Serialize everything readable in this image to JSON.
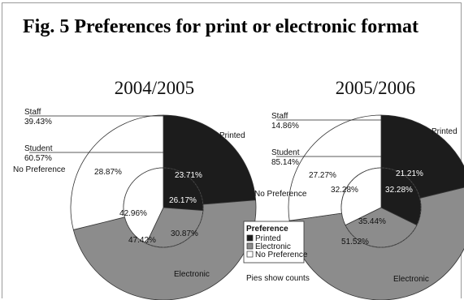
{
  "figure_title": "Fig. 5 Preferences for print or electronic format",
  "colors": {
    "printed": "#1c1c1c",
    "electronic": "#8c8c8c",
    "no_preference": "#ffffff",
    "outline": "#333333"
  },
  "chart_data": [
    {
      "type": "pie",
      "title": "2004/2005",
      "outer_ring": {
        "categories": [
          "Printed",
          "Electronic",
          "No Preference"
        ],
        "values": [
          23.71,
          47.42,
          28.87
        ],
        "labels": [
          "23.71%",
          "47.42%",
          "28.87%"
        ]
      },
      "inner_ring": {
        "categories": [
          "Printed",
          "Electronic",
          "No Preference"
        ],
        "values": [
          26.17,
          30.87,
          42.96
        ],
        "labels": [
          "26.17%",
          "30.87%",
          "42.96%"
        ]
      },
      "callouts": [
        {
          "name": "Staff",
          "value": "39.43%"
        },
        {
          "name": "Student",
          "value": "60.57%"
        }
      ],
      "category_labels": {
        "printed": "Printed",
        "electronic": "Electronic",
        "no_preference": "No Preference"
      }
    },
    {
      "type": "pie",
      "title": "2005/2006",
      "outer_ring": {
        "categories": [
          "Printed",
          "Electronic",
          "No Preference"
        ],
        "values": [
          21.21,
          51.52,
          27.27
        ],
        "labels": [
          "21.21%",
          "51.52%",
          "27.27%"
        ]
      },
      "inner_ring": {
        "categories": [
          "Printed",
          "Electronic",
          "No Preference"
        ],
        "values": [
          32.28,
          35.44,
          32.28
        ],
        "labels": [
          "32.28%",
          "35.44%",
          "32.28%"
        ]
      },
      "callouts": [
        {
          "name": "Staff",
          "value": "14.86%"
        },
        {
          "name": "Student",
          "value": "85.14%"
        }
      ],
      "category_labels": {
        "printed": "Printed",
        "electronic": "Electronic",
        "no_preference": "No Preference"
      }
    }
  ],
  "legend": {
    "title": "Preference",
    "items": [
      "Printed",
      "Electronic",
      "No Preference"
    ]
  },
  "footnote": "Pies show counts"
}
